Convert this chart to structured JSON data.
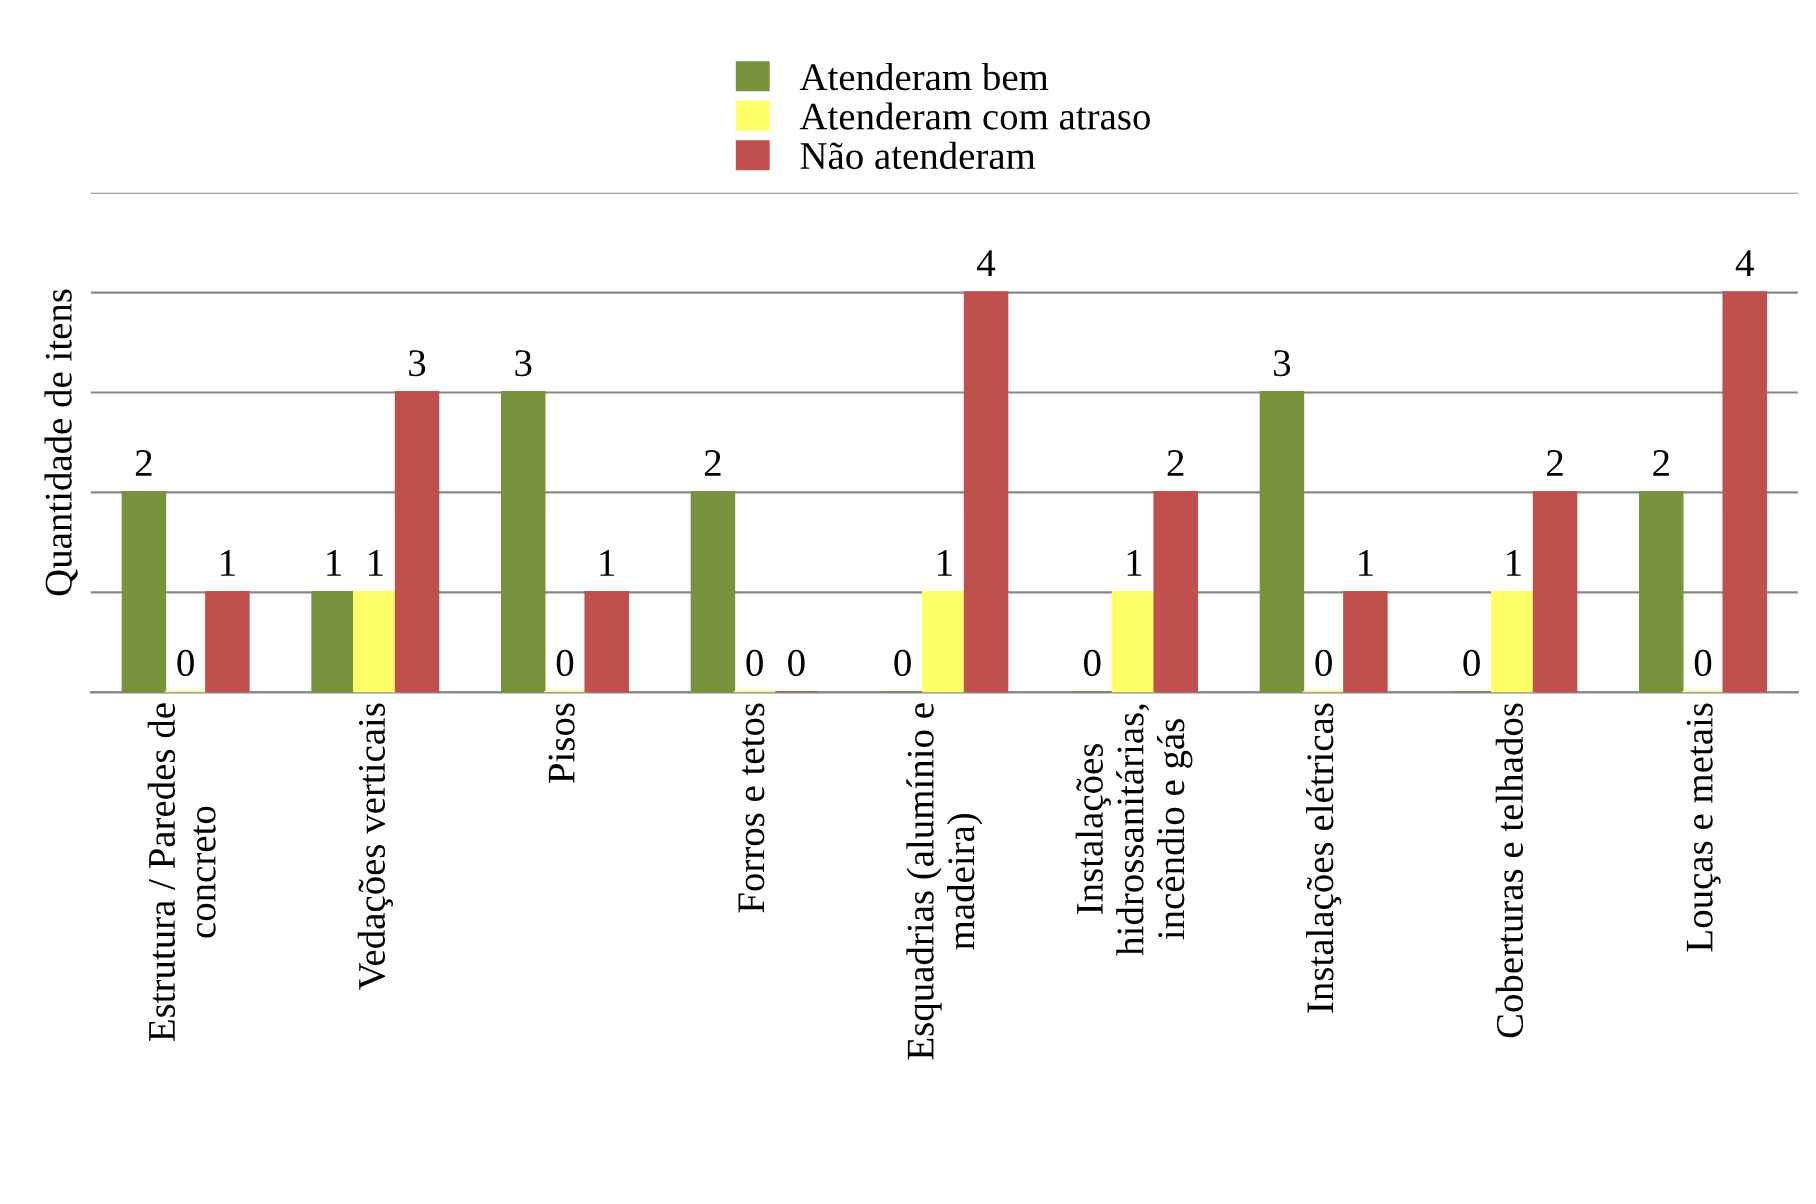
{
  "chart_data": {
    "type": "bar",
    "ylabel": "Quantidade de itens",
    "categories": [
      "Estrutura / Paredes de concreto",
      "Vedações verticais",
      "Pisos",
      "Forros e tetos",
      "Esquadrias (alumínio e madeira)",
      "Instalações hidrossanitárias, incêndio e gás",
      "Instalações elétricas",
      "Coberturas e telhados",
      "Louças e metais"
    ],
    "series": [
      {
        "name": "Atenderam bem",
        "color": "#77933c",
        "values": [
          2,
          1,
          3,
          2,
          0,
          0,
          3,
          0,
          2
        ]
      },
      {
        "name": "Atenderam com atraso",
        "color": "#ffff66",
        "values": [
          0,
          1,
          0,
          0,
          1,
          1,
          0,
          1,
          0
        ]
      },
      {
        "name": "Não atenderam",
        "color": "#c0504d",
        "values": [
          1,
          3,
          1,
          0,
          4,
          2,
          1,
          2,
          4
        ]
      }
    ],
    "ylim": [
      0,
      5
    ],
    "yticks": [
      {
        "value": 0,
        "label": null
      },
      {
        "value": 1,
        "label": null
      },
      {
        "value": 2,
        "label": null
      },
      {
        "value": 3,
        "label": null
      },
      {
        "value": 4,
        "label": null
      },
      {
        "value": 5,
        "label": null
      }
    ],
    "tick_labels": "x",
    "grid": "y",
    "legend": "top",
    "data_labels": true
  }
}
